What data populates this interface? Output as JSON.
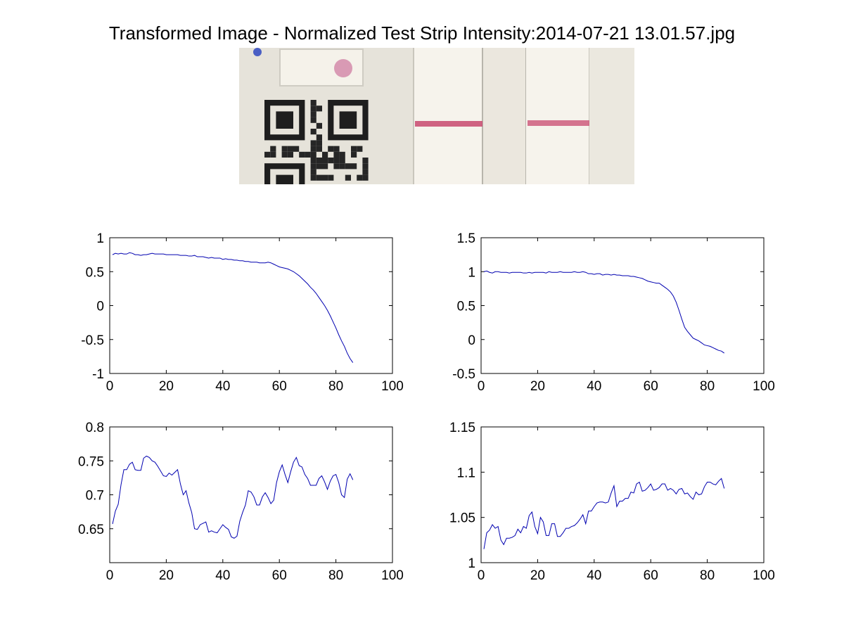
{
  "title": "Transformed Image - Normalized Test Strip Intensity:2014-07-21 13.01.57.jpg",
  "colors": {
    "series": "#0000b0",
    "photo_background": "#ece9e0",
    "strip_line": "#c8486f",
    "control_dot": "#cc6d96",
    "blue_dot": "#4a5fc4"
  },
  "photo": {
    "description_icon": "test-strip-photo",
    "qr_code_icon": "qr-code-icon"
  },
  "chart_data": [
    {
      "type": "line",
      "x": [
        1,
        2,
        3,
        4,
        5,
        6,
        7,
        8,
        9,
        10,
        11,
        12,
        13,
        14,
        15,
        16,
        17,
        18,
        19,
        20,
        21,
        22,
        23,
        24,
        25,
        26,
        27,
        28,
        29,
        30,
        31,
        32,
        33,
        34,
        35,
        36,
        37,
        38,
        39,
        40,
        41,
        42,
        43,
        44,
        45,
        46,
        47,
        48,
        49,
        50,
        51,
        52,
        53,
        54,
        55,
        56,
        57,
        58,
        59,
        60,
        61,
        62,
        63,
        64,
        65,
        66,
        67,
        68,
        69,
        70,
        71,
        72,
        73,
        74,
        75,
        76,
        77,
        78,
        79,
        80,
        81,
        82,
        83,
        84,
        85,
        86
      ],
      "series": [
        {
          "values": [
            0.75,
            0.77,
            0.76,
            0.77,
            0.76,
            0.76,
            0.78,
            0.77,
            0.75,
            0.75,
            0.74,
            0.75,
            0.75,
            0.76,
            0.77,
            0.76,
            0.76,
            0.76,
            0.76,
            0.75,
            0.75,
            0.75,
            0.75,
            0.75,
            0.74,
            0.74,
            0.74,
            0.73,
            0.73,
            0.74,
            0.72,
            0.72,
            0.72,
            0.71,
            0.7,
            0.71,
            0.7,
            0.7,
            0.7,
            0.68,
            0.69,
            0.68,
            0.68,
            0.67,
            0.67,
            0.66,
            0.66,
            0.65,
            0.65,
            0.64,
            0.64,
            0.64,
            0.63,
            0.63,
            0.63,
            0.64,
            0.63,
            0.61,
            0.59,
            0.57,
            0.56,
            0.55,
            0.54,
            0.52,
            0.5,
            0.47,
            0.44,
            0.4,
            0.36,
            0.32,
            0.27,
            0.23,
            0.18,
            0.12,
            0.06,
            0.0,
            -0.07,
            -0.15,
            -0.24,
            -0.33,
            -0.43,
            -0.52,
            -0.6,
            -0.7,
            -0.78,
            -0.84
          ]
        }
      ],
      "xlim": [
        0,
        100
      ],
      "ylim": [
        -1,
        1
      ],
      "xticks": [
        "0",
        "20",
        "40",
        "60",
        "80",
        "100"
      ],
      "yticks": [
        "-1",
        "-0.5",
        "0",
        "0.5",
        "1"
      ],
      "grid": false
    },
    {
      "type": "line",
      "x": [
        1,
        2,
        3,
        4,
        5,
        6,
        7,
        8,
        9,
        10,
        11,
        12,
        13,
        14,
        15,
        16,
        17,
        18,
        19,
        20,
        21,
        22,
        23,
        24,
        25,
        26,
        27,
        28,
        29,
        30,
        31,
        32,
        33,
        34,
        35,
        36,
        37,
        38,
        39,
        40,
        41,
        42,
        43,
        44,
        45,
        46,
        47,
        48,
        49,
        50,
        51,
        52,
        53,
        54,
        55,
        56,
        57,
        58,
        59,
        60,
        61,
        62,
        63,
        64,
        65,
        66,
        67,
        68,
        69,
        70,
        71,
        72,
        73,
        74,
        75,
        76,
        77,
        78,
        79,
        80,
        81,
        82,
        83,
        84,
        85,
        86
      ],
      "series": [
        {
          "values": [
            1.0,
            1.01,
            0.99,
            0.98,
            1.0,
            1.0,
            0.99,
            0.99,
            0.99,
            0.98,
            0.99,
            0.99,
            0.99,
            0.99,
            0.98,
            0.98,
            0.99,
            0.98,
            0.99,
            0.99,
            0.99,
            0.99,
            0.98,
            1.0,
            0.99,
            0.99,
            0.99,
            1.0,
            0.99,
            0.99,
            0.99,
            0.99,
            1.0,
            0.99,
            0.99,
            1.0,
            0.99,
            0.97,
            0.97,
            0.96,
            0.97,
            0.97,
            0.95,
            0.96,
            0.96,
            0.95,
            0.96,
            0.95,
            0.95,
            0.94,
            0.94,
            0.94,
            0.93,
            0.93,
            0.92,
            0.91,
            0.9,
            0.88,
            0.86,
            0.85,
            0.84,
            0.83,
            0.83,
            0.8,
            0.77,
            0.74,
            0.7,
            0.64,
            0.55,
            0.43,
            0.3,
            0.18,
            0.12,
            0.07,
            0.02,
            0.0,
            -0.02,
            -0.05,
            -0.08,
            -0.09,
            -0.1,
            -0.12,
            -0.14,
            -0.16,
            -0.17,
            -0.2
          ]
        }
      ],
      "xlim": [
        0,
        100
      ],
      "ylim": [
        -0.5,
        1.5
      ],
      "xticks": [
        "0",
        "20",
        "40",
        "60",
        "80",
        "100"
      ],
      "yticks": [
        "-0.5",
        "0",
        "0.5",
        "1",
        "1.5"
      ],
      "grid": false
    },
    {
      "type": "line",
      "x": [
        1,
        2,
        3,
        4,
        5,
        6,
        7,
        8,
        9,
        10,
        11,
        12,
        13,
        14,
        15,
        16,
        17,
        18,
        19,
        20,
        21,
        22,
        23,
        24,
        25,
        26,
        27,
        28,
        29,
        30,
        31,
        32,
        33,
        34,
        35,
        36,
        37,
        38,
        39,
        40,
        41,
        42,
        43,
        44,
        45,
        46,
        47,
        48,
        49,
        50,
        51,
        52,
        53,
        54,
        55,
        56,
        57,
        58,
        59,
        60,
        61,
        62,
        63,
        64,
        65,
        66,
        67,
        68,
        69,
        70,
        71,
        72,
        73,
        74,
        75,
        76,
        77,
        78,
        79,
        80,
        81,
        82,
        83,
        84,
        85,
        86
      ],
      "series": [
        {
          "values": [
            0.657,
            0.676,
            0.686,
            0.715,
            0.737,
            0.737,
            0.745,
            0.748,
            0.737,
            0.736,
            0.736,
            0.754,
            0.757,
            0.755,
            0.75,
            0.748,
            0.742,
            0.735,
            0.728,
            0.727,
            0.732,
            0.729,
            0.733,
            0.737,
            0.716,
            0.7,
            0.706,
            0.688,
            0.674,
            0.65,
            0.649,
            0.656,
            0.658,
            0.66,
            0.645,
            0.647,
            0.645,
            0.644,
            0.65,
            0.656,
            0.652,
            0.649,
            0.638,
            0.636,
            0.639,
            0.661,
            0.674,
            0.685,
            0.706,
            0.704,
            0.697,
            0.685,
            0.685,
            0.697,
            0.703,
            0.696,
            0.687,
            0.692,
            0.718,
            0.734,
            0.744,
            0.73,
            0.718,
            0.734,
            0.748,
            0.755,
            0.743,
            0.741,
            0.73,
            0.724,
            0.714,
            0.714,
            0.714,
            0.724,
            0.728,
            0.719,
            0.708,
            0.72,
            0.728,
            0.73,
            0.718,
            0.7,
            0.696,
            0.723,
            0.731,
            0.722
          ]
        }
      ],
      "xlim": [
        0,
        100
      ],
      "ylim": [
        0.6,
        0.8
      ],
      "xticks": [
        "0",
        "20",
        "40",
        "60",
        "80",
        "100"
      ],
      "yticks": [
        "0.65",
        "0.7",
        "0.75",
        "0.8"
      ],
      "grid": false
    },
    {
      "type": "line",
      "x": [
        1,
        2,
        3,
        4,
        5,
        6,
        7,
        8,
        9,
        10,
        11,
        12,
        13,
        14,
        15,
        16,
        17,
        18,
        19,
        20,
        21,
        22,
        23,
        24,
        25,
        26,
        27,
        28,
        29,
        30,
        31,
        32,
        33,
        34,
        35,
        36,
        37,
        38,
        39,
        40,
        41,
        42,
        43,
        44,
        45,
        46,
        47,
        48,
        49,
        50,
        51,
        52,
        53,
        54,
        55,
        56,
        57,
        58,
        59,
        60,
        61,
        62,
        63,
        64,
        65,
        66,
        67,
        68,
        69,
        70,
        71,
        72,
        73,
        74,
        75,
        76,
        77,
        78,
        79,
        80,
        81,
        82,
        83,
        84,
        85,
        86
      ],
      "series": [
        {
          "values": [
            1.015,
            1.033,
            1.036,
            1.042,
            1.038,
            1.04,
            1.025,
            1.02,
            1.027,
            1.027,
            1.028,
            1.03,
            1.037,
            1.033,
            1.04,
            1.038,
            1.052,
            1.056,
            1.04,
            1.032,
            1.05,
            1.045,
            1.03,
            1.03,
            1.043,
            1.043,
            1.029,
            1.029,
            1.033,
            1.038,
            1.038,
            1.04,
            1.041,
            1.044,
            1.048,
            1.053,
            1.043,
            1.057,
            1.057,
            1.062,
            1.066,
            1.067,
            1.067,
            1.066,
            1.067,
            1.077,
            1.085,
            1.062,
            1.068,
            1.068,
            1.071,
            1.071,
            1.078,
            1.077,
            1.087,
            1.089,
            1.079,
            1.08,
            1.083,
            1.087,
            1.08,
            1.081,
            1.083,
            1.087,
            1.087,
            1.08,
            1.082,
            1.08,
            1.076,
            1.081,
            1.082,
            1.076,
            1.077,
            1.073,
            1.07,
            1.078,
            1.075,
            1.076,
            1.084,
            1.089,
            1.089,
            1.087,
            1.086,
            1.09,
            1.093,
            1.082
          ]
        }
      ],
      "xlim": [
        0,
        100
      ],
      "ylim": [
        1,
        1.15
      ],
      "xticks": [
        "0",
        "20",
        "40",
        "60",
        "80",
        "100"
      ],
      "yticks": [
        "1",
        "1.05",
        "1.1",
        "1.15"
      ],
      "grid": false
    }
  ]
}
